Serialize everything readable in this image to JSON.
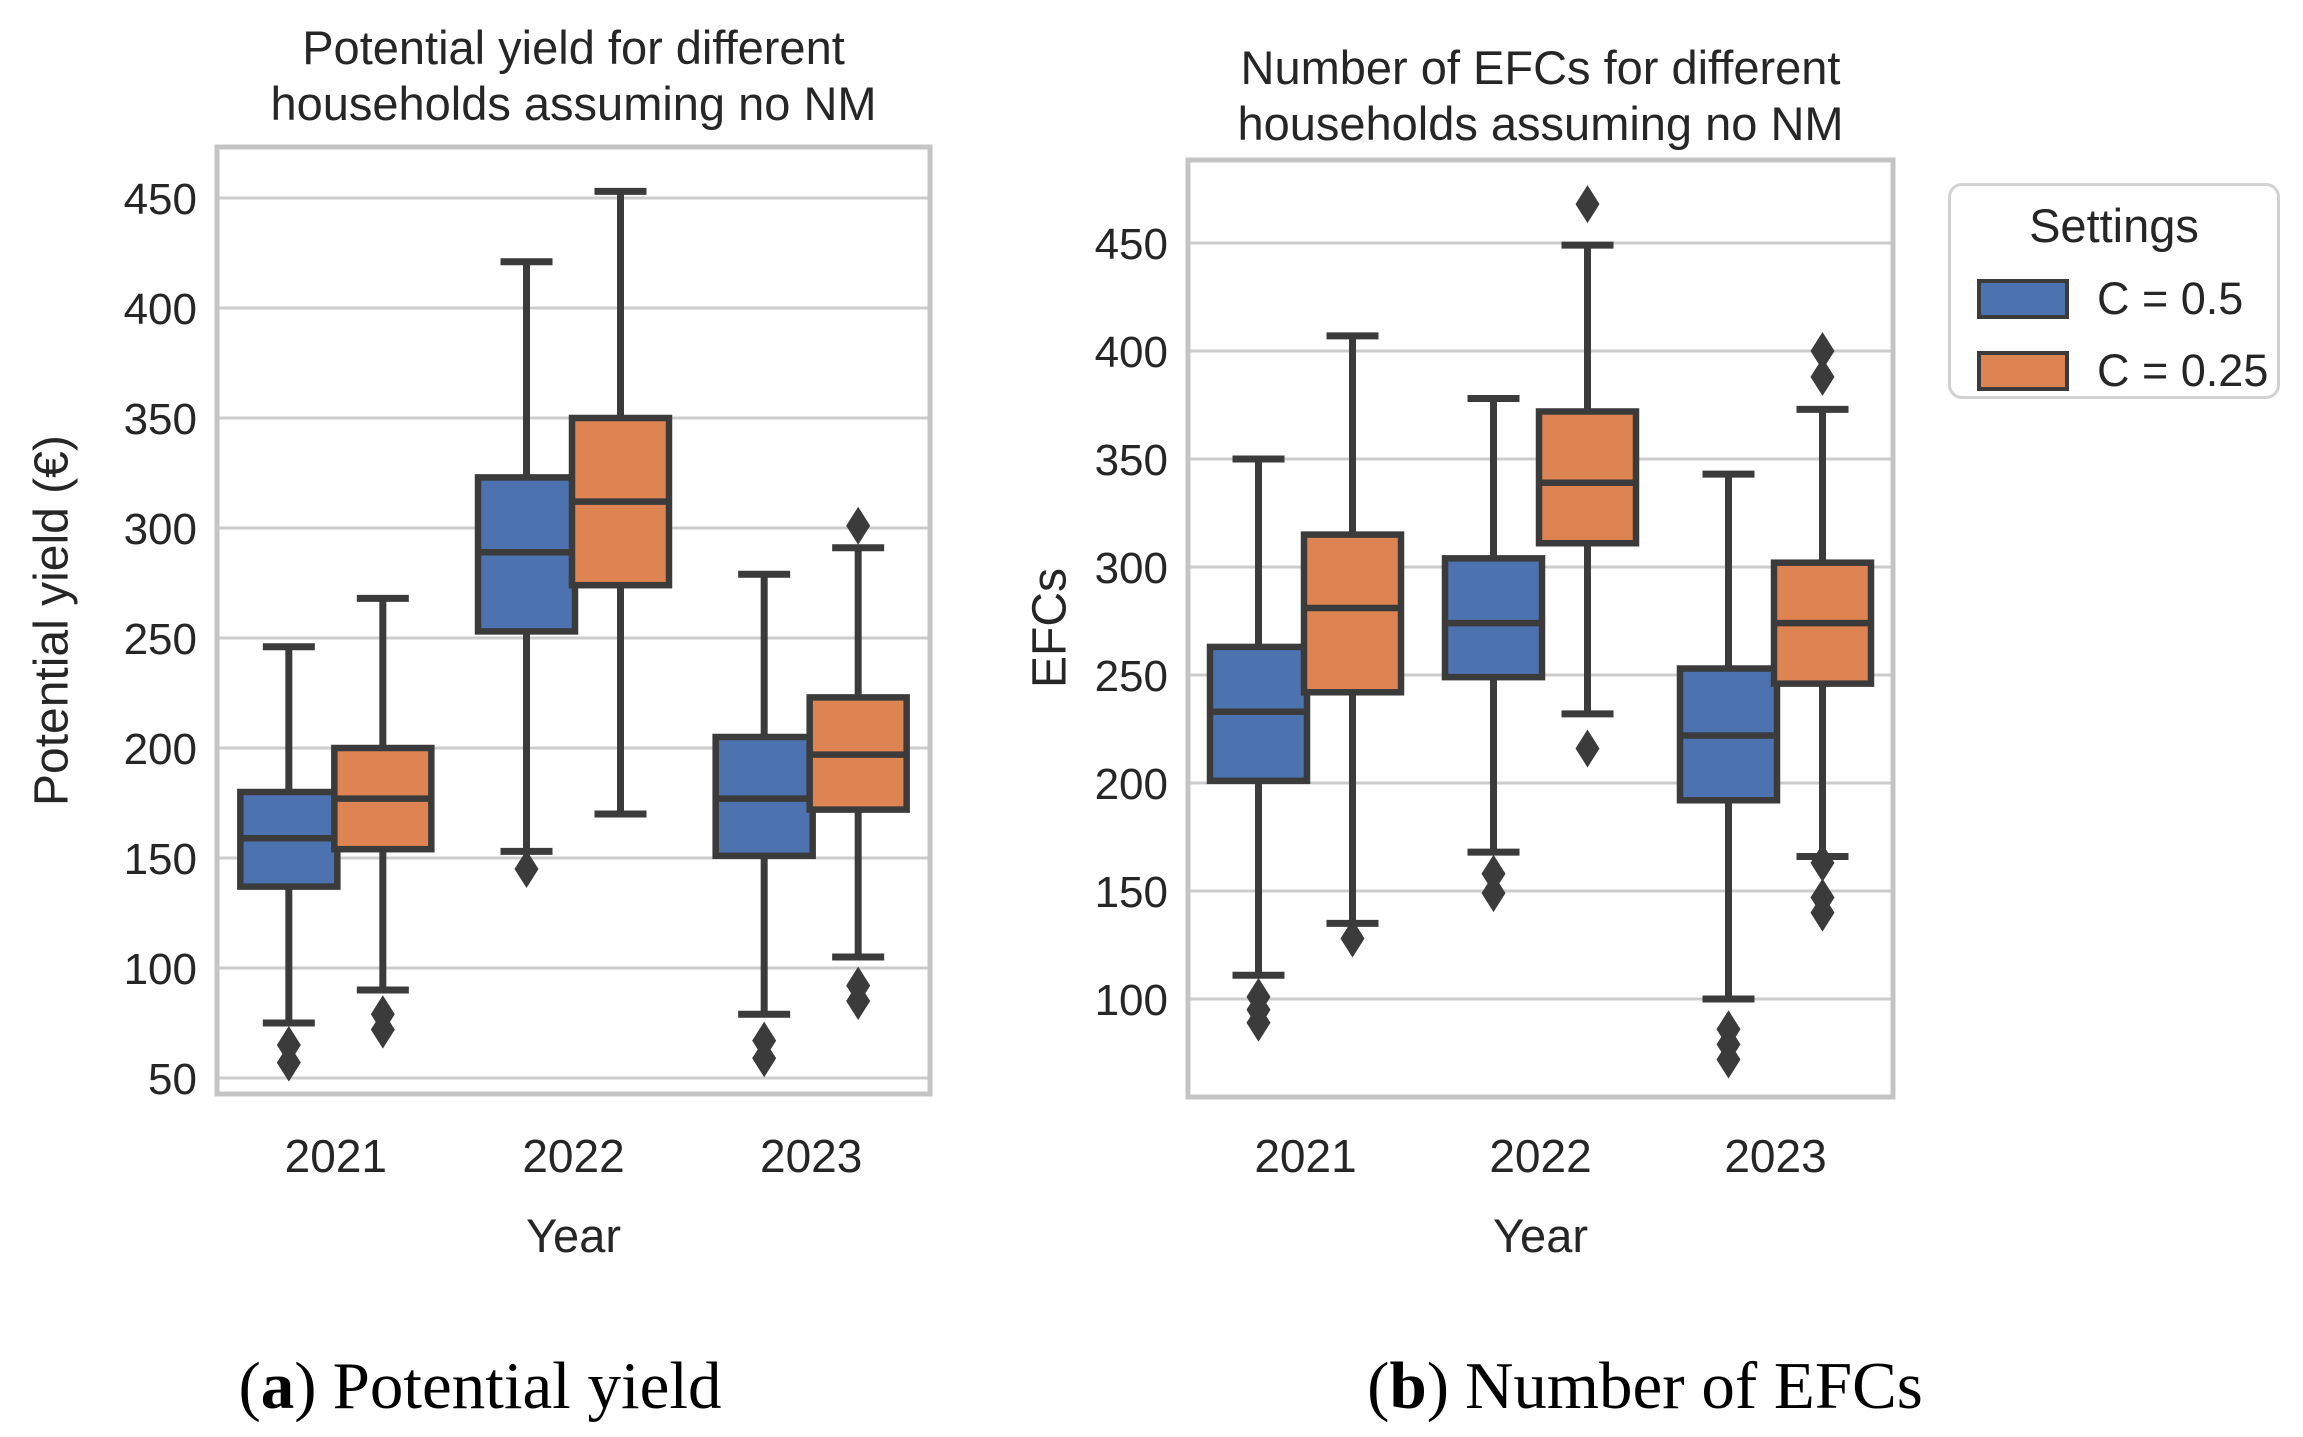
{
  "colors": {
    "blue": "#4C72B0",
    "orange": "#DD8452",
    "box_edge": "#3B3B3B",
    "grid": "#CCCCCC",
    "frame": "#C4C4C4",
    "text": "#262626"
  },
  "legend": {
    "title": "Settings",
    "items": [
      {
        "label": "C = 0.5",
        "color": "#4C72B0"
      },
      {
        "label": "C = 0.25",
        "color": "#DD8452"
      }
    ]
  },
  "captions": [
    {
      "open": "(",
      "letter": "a",
      "close": ")",
      "text": "Potential yield"
    },
    {
      "open": "(",
      "letter": "b",
      "close": ")",
      "text": "Number of EFCs"
    }
  ],
  "chart_data": [
    {
      "type": "boxplot",
      "id": "potential-yield",
      "title": "Potential yield for different\nhouseholds assuming no NM",
      "xlabel": "Year",
      "ylabel": "Potential yield (€)",
      "categories": [
        "2021",
        "2022",
        "2023"
      ],
      "yticks": [
        50,
        100,
        150,
        200,
        250,
        300,
        350,
        400,
        450
      ],
      "ylim": [
        36,
        473
      ],
      "grid": true,
      "series": [
        {
          "name": "C = 0.5",
          "color": "#4C72B0",
          "boxes": [
            {
              "whislo": 75,
              "q1": 137,
              "med": 159,
              "q3": 180,
              "whishi": 246,
              "fliers": [
                57,
                65
              ]
            },
            {
              "whislo": 153,
              "q1": 253,
              "med": 289,
              "q3": 323,
              "whishi": 421,
              "fliers": [
                145
              ]
            },
            {
              "whislo": 79,
              "q1": 151,
              "med": 177,
              "q3": 205,
              "whishi": 279,
              "fliers": [
                59,
                67
              ]
            }
          ]
        },
        {
          "name": "C = 0.25",
          "color": "#DD8452",
          "boxes": [
            {
              "whislo": 90,
              "q1": 154,
              "med": 177,
              "q3": 200,
              "whishi": 268,
              "fliers": [
                72,
                79
              ]
            },
            {
              "whislo": 170,
              "q1": 274,
              "med": 312,
              "q3": 350,
              "whishi": 453,
              "fliers": []
            },
            {
              "whislo": 105,
              "q1": 172,
              "med": 197,
              "q3": 223,
              "whishi": 291,
              "fliers": [
                85,
                92,
                301
              ]
            }
          ]
        }
      ]
    },
    {
      "type": "boxplot",
      "id": "efcs",
      "title": "Number of EFCs for different\nhouseholds assuming no NM",
      "xlabel": "Year",
      "ylabel": "EFCs",
      "categories": [
        "2021",
        "2022",
        "2023"
      ],
      "yticks": [
        100,
        150,
        200,
        250,
        300,
        350,
        400,
        450
      ],
      "ylim": [
        54,
        494
      ],
      "grid": true,
      "series": [
        {
          "name": "C = 0.5",
          "color": "#4C72B0",
          "boxes": [
            {
              "whislo": 111,
              "q1": 201,
              "med": 233,
              "q3": 263,
              "whishi": 350,
              "fliers": [
                89,
                95,
                101
              ]
            },
            {
              "whislo": 168,
              "q1": 249,
              "med": 274,
              "q3": 304,
              "whishi": 378,
              "fliers": [
                149,
                158
              ]
            },
            {
              "whislo": 100,
              "q1": 192,
              "med": 222,
              "q3": 253,
              "whishi": 343,
              "fliers": [
                72,
                79,
                86
              ]
            }
          ]
        },
        {
          "name": "C = 0.25",
          "color": "#DD8452",
          "boxes": [
            {
              "whislo": 135,
              "q1": 242,
              "med": 281,
              "q3": 315,
              "whishi": 407,
              "fliers": [
                128
              ]
            },
            {
              "whislo": 232,
              "q1": 311,
              "med": 339,
              "q3": 372,
              "whishi": 449,
              "fliers": [
                216,
                468
              ]
            },
            {
              "whislo": 166,
              "q1": 246,
              "med": 274,
              "q3": 302,
              "whishi": 373,
              "fliers": [
                140,
                147,
                163,
                388,
                400
              ]
            }
          ]
        }
      ]
    }
  ]
}
